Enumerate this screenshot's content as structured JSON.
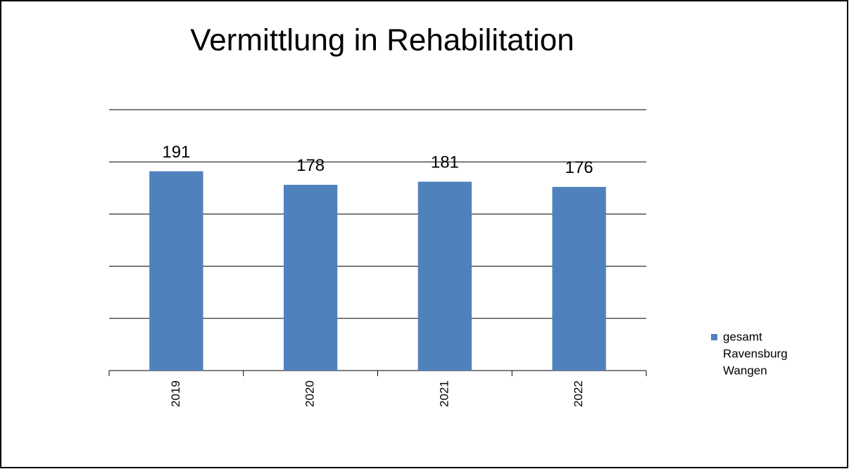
{
  "chart_data": {
    "type": "bar",
    "title": "Vermittlung in Rehabilitation",
    "categories": [
      "2019",
      "2020",
      "2021",
      "2022"
    ],
    "series": [
      {
        "name": "gesamt",
        "color": "#4f81bd",
        "values": [
          191,
          178,
          181,
          176
        ]
      },
      {
        "name": "Ravensburg",
        "values": [
          null,
          null,
          null,
          null
        ]
      },
      {
        "name": "Wangen",
        "values": [
          null,
          null,
          null,
          null
        ]
      }
    ],
    "ylim": [
      0,
      250
    ],
    "yticks": [
      0,
      50,
      100,
      150,
      200,
      250
    ],
    "grid": true,
    "legend": "right"
  }
}
